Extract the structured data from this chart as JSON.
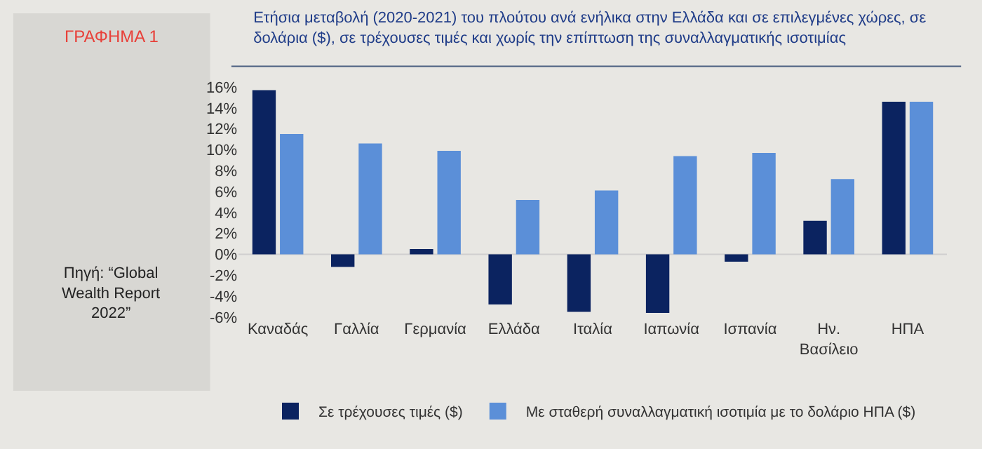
{
  "chart_data": {
    "type": "bar",
    "title": "Ετήσια μεταβολή (2020-2021) του πλούτου ανά ενήλικα στην Ελλάδα και σε επιλεγμένες χώρες, σε\nδολάρια ($), σε τρέχουσες τιμές και χωρίς την επίπτωση της συναλλαγματικής ισοτιμίας",
    "categories": [
      "Καναδάς",
      "Γαλλία",
      "Γερμανία",
      "Ελλάδα",
      "Ιταλία",
      "Ιαπωνία",
      "Ισπανία",
      "Ην.\nΒασίλειο",
      "ΗΠΑ"
    ],
    "series": [
      {
        "name": "Σε τρέχουσες τιμές ($)",
        "color": "#0b2360",
        "values": [
          15.7,
          -1.2,
          0.5,
          -4.8,
          -5.5,
          -5.6,
          -0.7,
          3.2,
          14.6
        ]
      },
      {
        "name": "Με σταθερή συναλλαγματική ισοτιμία με το δολάριο ΗΠΑ ($)",
        "color": "#5b8fd8",
        "values": [
          11.5,
          10.6,
          9.9,
          5.2,
          6.1,
          9.4,
          9.7,
          7.2,
          14.6
        ]
      }
    ],
    "ylim": [
      -6,
      16
    ],
    "ref_lines": [
      {
        "axis": "y",
        "value": 0,
        "color": "#cfcfcf"
      }
    ],
    "yticks": [
      {
        "value": -6,
        "label": "-6%"
      },
      {
        "value": -4,
        "label": "-4%"
      },
      {
        "value": -2,
        "label": "-2%"
      },
      {
        "value": 0,
        "label": "0%"
      },
      {
        "value": 2,
        "label": "2%"
      },
      {
        "value": 4,
        "label": "4%"
      },
      {
        "value": 6,
        "label": "6%"
      },
      {
        "value": 8,
        "label": "8%"
      },
      {
        "value": 10,
        "label": "10%"
      },
      {
        "value": 12,
        "label": "12%"
      },
      {
        "value": 14,
        "label": "14%"
      },
      {
        "value": 16,
        "label": "16%"
      }
    ],
    "grid": false,
    "legend": "bottom",
    "annotations": [
      "ΓΡΑΦΗΜΑ 1",
      "Πηγή: “Global\nWealth Report\n2022”"
    ]
  }
}
